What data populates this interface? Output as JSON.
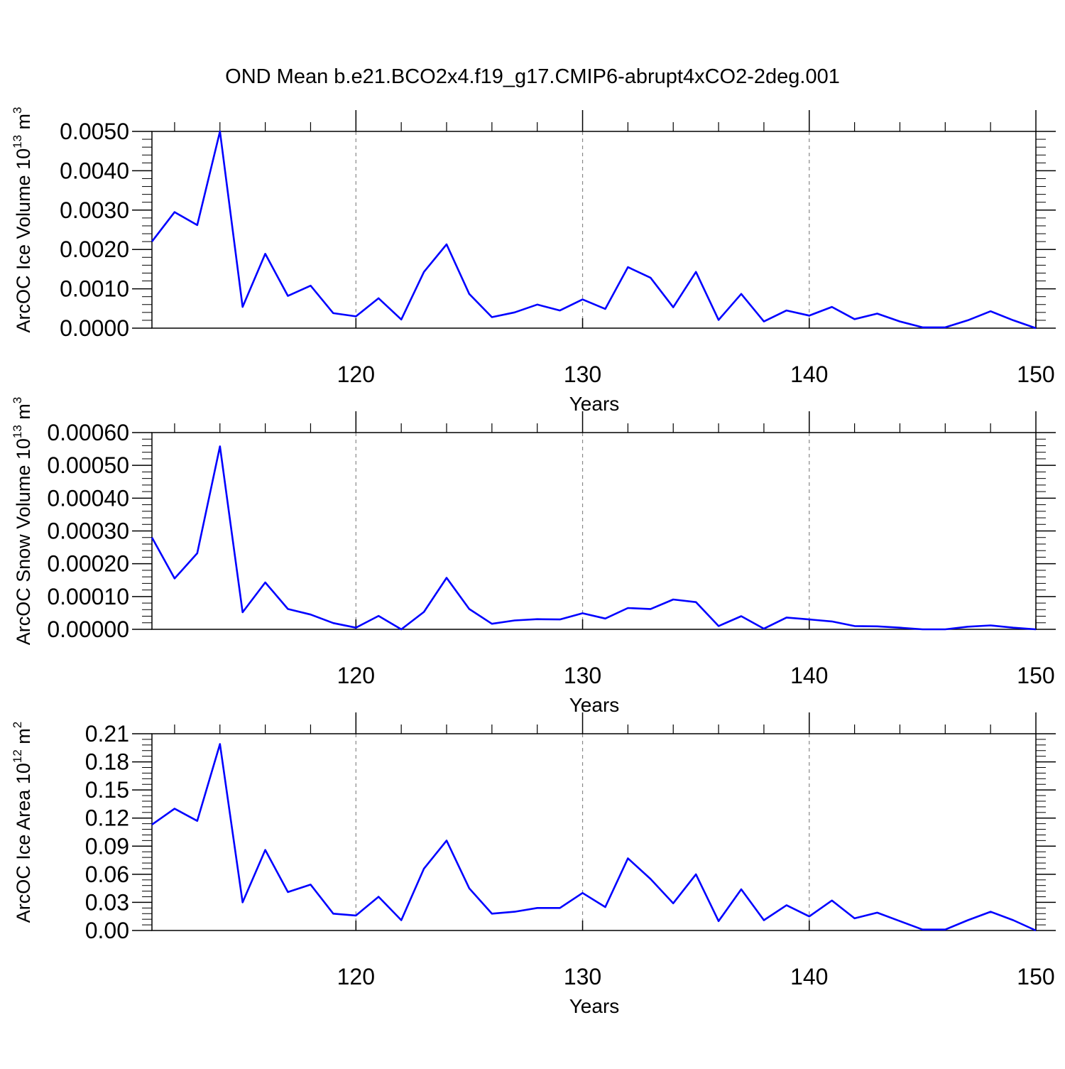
{
  "title": "OND Mean b.e21.BCO2x4.f19_g17.CMIP6-abrupt4xCO2-2deg.001",
  "colors": {
    "line": "#0000ff",
    "axis": "#000000",
    "grid": "#888888"
  },
  "chart_data": [
    {
      "type": "line",
      "ylabel": "ArcOC Ice Volume 10",
      "ylabel_exp": "13",
      "ylabel_unit": "m",
      "ylabel_unit_exp": "3",
      "xlabel": "Years",
      "xlim": [
        111,
        150
      ],
      "ylim": [
        0,
        0.005
      ],
      "yticks": [
        0,
        0.001,
        0.002,
        0.003,
        0.004,
        0.005
      ],
      "yticklabels": [
        "0.0000",
        "0.0010",
        "0.0020",
        "0.0030",
        "0.0040",
        "0.0050"
      ],
      "xticks": [
        120,
        130,
        140,
        150
      ],
      "xticklabels": [
        "120",
        "130",
        "140",
        "150"
      ],
      "grid": "dashed vertical at major x ticks",
      "x": [
        111,
        112,
        113,
        114,
        115,
        116,
        117,
        118,
        119,
        120,
        121,
        122,
        123,
        124,
        125,
        126,
        127,
        128,
        129,
        130,
        131,
        132,
        133,
        134,
        135,
        136,
        137,
        138,
        139,
        140,
        141,
        142,
        143,
        144,
        145,
        146,
        147,
        148,
        149,
        150
      ],
      "series": [
        {
          "values": [
            0.0022,
            0.00295,
            0.00262,
            0.005,
            0.00054,
            0.00189,
            0.00082,
            0.00108,
            0.00038,
            0.0003,
            0.00076,
            0.00022,
            0.00143,
            0.00213,
            0.00087,
            0.00028,
            0.0004,
            0.0006,
            0.00045,
            0.00073,
            0.00049,
            0.00155,
            0.00128,
            0.00053,
            0.00143,
            0.00021,
            0.00087,
            0.00017,
            0.00045,
            0.00032,
            0.00054,
            0.00023,
            0.00037,
            0.00017,
            2e-05,
            2e-05,
            0.0002,
            0.00043,
            0.0002,
            0.0
          ]
        }
      ]
    },
    {
      "type": "line",
      "ylabel": "ArcOC Snow Volume 10",
      "ylabel_exp": "13",
      "ylabel_unit": "m",
      "ylabel_unit_exp": "3",
      "xlabel": "Years",
      "xlim": [
        111,
        150
      ],
      "ylim": [
        0,
        0.0006
      ],
      "yticks": [
        0,
        0.0001,
        0.0002,
        0.0003,
        0.0004,
        0.0005,
        0.0006
      ],
      "yticklabels": [
        "0.00000",
        "0.00010",
        "0.00020",
        "0.00030",
        "0.00040",
        "0.00050",
        "0.00060"
      ],
      "xticks": [
        120,
        130,
        140,
        150
      ],
      "xticklabels": [
        "120",
        "130",
        "140",
        "150"
      ],
      "grid": "dashed vertical at major x ticks",
      "x": [
        111,
        112,
        113,
        114,
        115,
        116,
        117,
        118,
        119,
        120,
        121,
        122,
        123,
        124,
        125,
        126,
        127,
        128,
        129,
        130,
        131,
        132,
        133,
        134,
        135,
        136,
        137,
        138,
        139,
        140,
        141,
        142,
        143,
        144,
        145,
        146,
        147,
        148,
        149,
        150
      ],
      "series": [
        {
          "values": [
            0.00028,
            0.000155,
            0.000232,
            0.000558,
            5.2e-05,
            0.000143,
            6.2e-05,
            4.5e-05,
            1.9e-05,
            5e-06,
            4.1e-05,
            0.0,
            5.3e-05,
            0.000157,
            6.2e-05,
            1.7e-05,
            2.7e-05,
            3.1e-05,
            3e-05,
            4.9e-05,
            3.3e-05,
            6.5e-05,
            6.2e-05,
            9.1e-05,
            8.3e-05,
            1e-05,
            4e-05,
            2e-06,
            3.6e-05,
            3e-05,
            2.4e-05,
            1e-05,
            9e-06,
            5e-06,
            0.0,
            0.0,
            8e-06,
            1.2e-05,
            5e-06,
            0.0
          ]
        }
      ]
    },
    {
      "type": "line",
      "ylabel": "ArcOC Ice Area 10",
      "ylabel_exp": "12",
      "ylabel_unit": "m",
      "ylabel_unit_exp": "2",
      "xlabel": "Years",
      "xlim": [
        111,
        150
      ],
      "ylim": [
        0,
        0.21
      ],
      "yticks": [
        0,
        0.03,
        0.06,
        0.09,
        0.12,
        0.15,
        0.18,
        0.21
      ],
      "yticklabels": [
        "0.00",
        "0.03",
        "0.06",
        "0.09",
        "0.12",
        "0.15",
        "0.18",
        "0.21"
      ],
      "xticks": [
        120,
        130,
        140,
        150
      ],
      "xticklabels": [
        "120",
        "130",
        "140",
        "150"
      ],
      "grid": "dashed vertical at major x ticks",
      "x": [
        111,
        112,
        113,
        114,
        115,
        116,
        117,
        118,
        119,
        120,
        121,
        122,
        123,
        124,
        125,
        126,
        127,
        128,
        129,
        130,
        131,
        132,
        133,
        134,
        135,
        136,
        137,
        138,
        139,
        140,
        141,
        142,
        143,
        144,
        145,
        146,
        147,
        148,
        149,
        150
      ],
      "series": [
        {
          "values": [
            0.113,
            0.13,
            0.117,
            0.199,
            0.03,
            0.086,
            0.041,
            0.049,
            0.018,
            0.016,
            0.036,
            0.011,
            0.066,
            0.096,
            0.045,
            0.018,
            0.02,
            0.024,
            0.024,
            0.04,
            0.025,
            0.077,
            0.055,
            0.029,
            0.06,
            0.01,
            0.044,
            0.011,
            0.027,
            0.015,
            0.032,
            0.013,
            0.019,
            0.01,
            0.001,
            0.001,
            0.011,
            0.02,
            0.011,
            0.0
          ]
        }
      ]
    }
  ]
}
